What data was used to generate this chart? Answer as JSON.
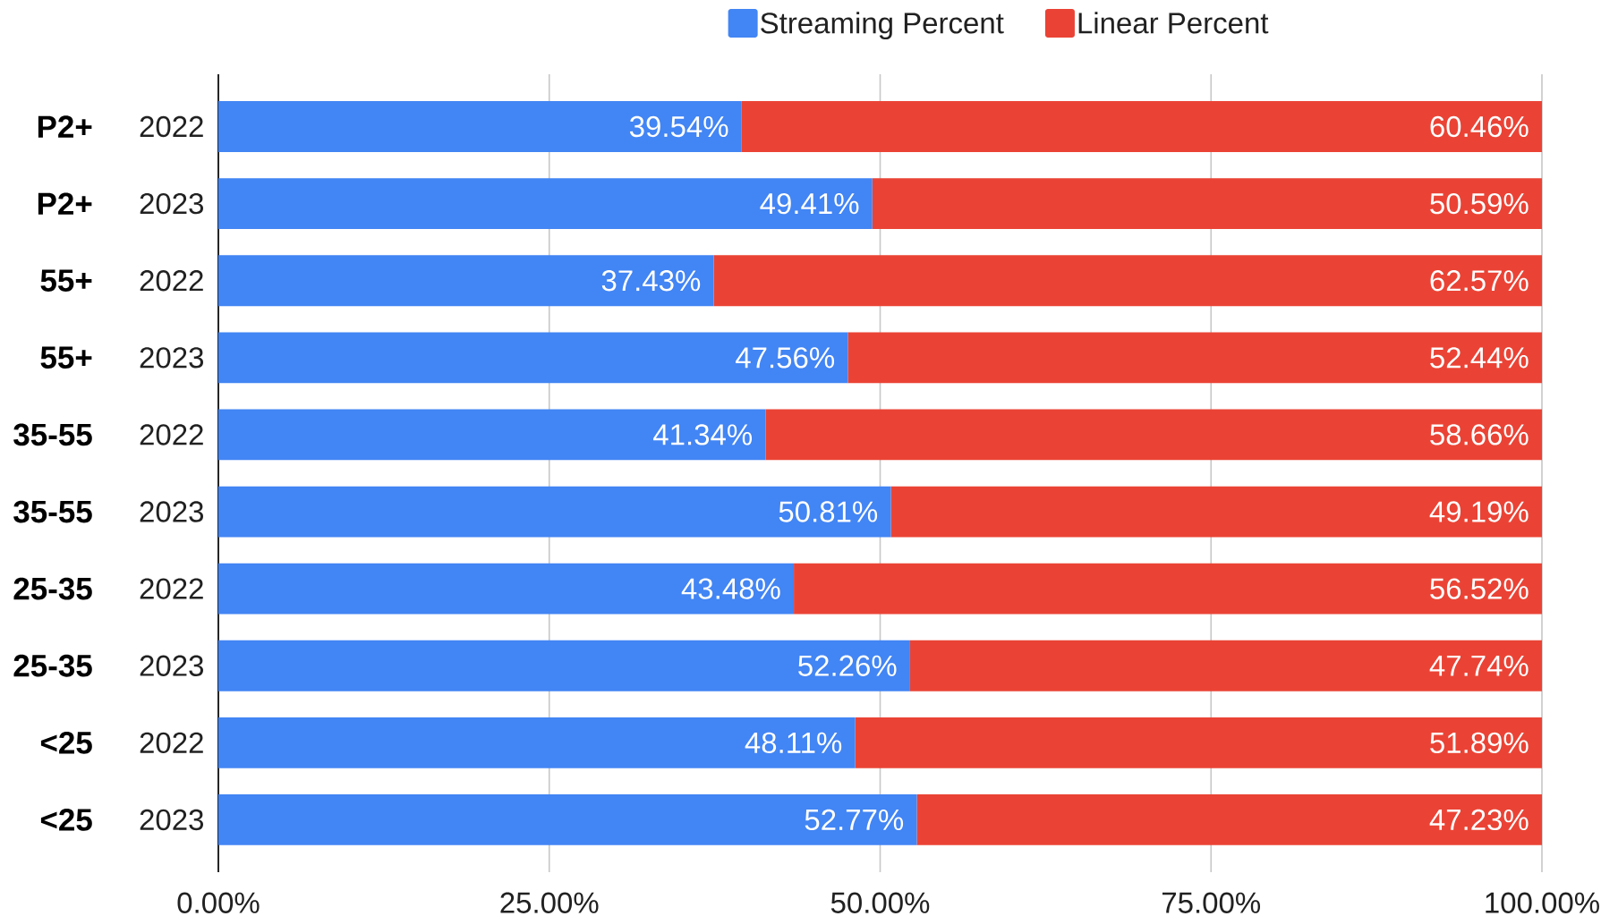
{
  "chart_data": {
    "type": "bar",
    "orientation": "horizontal",
    "stacked": true,
    "categories": [
      "2022",
      "2023",
      "2022",
      "2023",
      "2022",
      "2023",
      "2022",
      "2023",
      "2022",
      "2023"
    ],
    "annotations": [
      "P2+",
      "P2+",
      "55+",
      "55+",
      "35-55",
      "35-55",
      "25-35",
      "25-35",
      "<25",
      "<25"
    ],
    "series": [
      {
        "name": "Streaming Percent",
        "color": "#4285f4",
        "values": [
          39.54,
          49.41,
          37.43,
          47.56,
          41.34,
          50.81,
          43.48,
          52.26,
          48.11,
          52.77
        ],
        "value_labels": [
          "39.54%",
          "49.41%",
          "37.43%",
          "47.56%",
          "41.34%",
          "50.81%",
          "43.48%",
          "52.26%",
          "48.11%",
          "52.77%"
        ]
      },
      {
        "name": "Linear Percent",
        "color": "#ea4335",
        "values": [
          60.46,
          50.59,
          62.57,
          52.44,
          58.66,
          49.19,
          56.52,
          47.74,
          51.89,
          47.23
        ],
        "value_labels": [
          "60.46%",
          "50.59%",
          "62.57%",
          "52.44%",
          "58.66%",
          "49.19%",
          "56.52%",
          "47.74%",
          "51.89%",
          "47.23%"
        ]
      }
    ],
    "xlim": [
      0,
      100
    ],
    "xticks": [
      {
        "value": 0,
        "label": "0.00%"
      },
      {
        "value": 25,
        "label": "25.00%"
      },
      {
        "value": 50,
        "label": "50.00%"
      },
      {
        "value": 75,
        "label": "75.00%"
      },
      {
        "value": 100,
        "label": "100.00%"
      }
    ],
    "grid": "x",
    "legend": "top"
  }
}
